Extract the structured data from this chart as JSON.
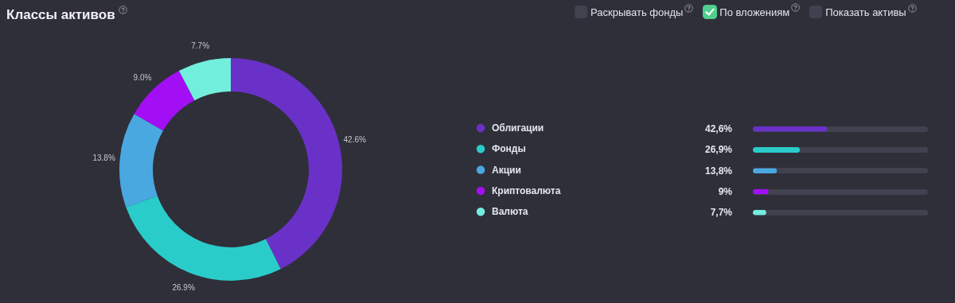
{
  "chart_data": [
    {
      "type": "donut",
      "title": "Классы активов",
      "categories": [
        "Облигации",
        "Фонды",
        "Акции",
        "Криптовалюта",
        "Валюта"
      ],
      "values": [
        42.6,
        26.9,
        13.8,
        9.0,
        7.7
      ],
      "value_labels": [
        "42.6%",
        "26.9%",
        "13.8%",
        "9.0%",
        "7.7%"
      ],
      "colors": [
        "#6a31c8",
        "#2accca",
        "#4aa8e0",
        "#a30ff5",
        "#72eedd"
      ],
      "legend": "right",
      "annotations": [
        "Раскрывать фонды",
        "По вложениям",
        "Показать активы"
      ]
    },
    {
      "type": "bar",
      "orientation": "horizontal",
      "categories": [
        null,
        null,
        null,
        null,
        null
      ],
      "values": [
        42.6,
        26.9,
        13.8,
        9.0,
        7.7
      ],
      "value_labels": [
        "42,6%",
        "26,9%",
        "13,8%",
        "9%",
        "7,7%"
      ],
      "colors": [
        "#6a31c8",
        "#2accca",
        "#4aa8e0",
        "#a30ff5",
        "#72eedd"
      ],
      "xlim": [
        0,
        100
      ],
      "tick_labels": false
    }
  ]
}
